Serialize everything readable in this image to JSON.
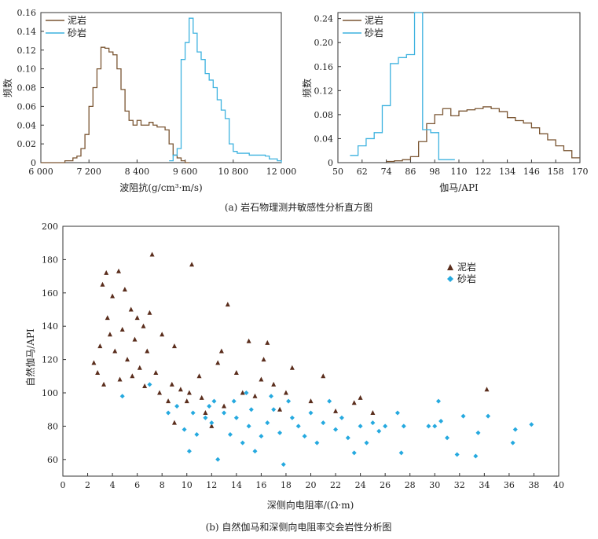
{
  "colors": {
    "shale": "#7a5532",
    "sandstone": "#3db2df",
    "shale_marker": "#5a2d1c",
    "sandstone_marker": "#25a9df"
  },
  "chart_data": [
    {
      "id": "a1",
      "type": "step-histogram",
      "xlabel": "波阻抗(g/cm³·m/s)",
      "ylabel": "频数",
      "xlim": [
        6000,
        12000
      ],
      "ylim": [
        0,
        0.16
      ],
      "xticks": [
        6000,
        7200,
        8400,
        9600,
        10800,
        12000
      ],
      "xtick_labels": [
        "6 000",
        "7 200",
        "8 400",
        "9 600",
        "10 800",
        "12 000"
      ],
      "yticks": [
        0,
        0.02,
        0.04,
        0.06,
        0.08,
        0.1,
        0.12,
        0.14,
        0.16
      ],
      "ytick_labels": [
        "0",
        "0.02",
        "0.04",
        "0.06",
        "0.08",
        "0.10",
        "0.12",
        "0.14",
        "0.16"
      ],
      "legend": [
        "泥岩",
        "砂岩"
      ],
      "series": [
        {
          "name": "泥岩",
          "x": [
            6000,
            6200,
            6400,
            6600,
            6800,
            6900,
            7000,
            7100,
            7200,
            7300,
            7400,
            7500,
            7600,
            7700,
            7800,
            7900,
            8000,
            8100,
            8200,
            8300,
            8400,
            8500,
            8600,
            8700,
            8800,
            8900,
            9000,
            9100,
            9200,
            9300,
            9400,
            9500,
            9600
          ],
          "y": [
            0,
            0,
            0,
            0.002,
            0.005,
            0.007,
            0.015,
            0.03,
            0.06,
            0.08,
            0.1,
            0.123,
            0.122,
            0.118,
            0.115,
            0.1,
            0.078,
            0.055,
            0.045,
            0.04,
            0.045,
            0.04,
            0.04,
            0.043,
            0.04,
            0.038,
            0.038,
            0.035,
            0.02,
            0.008,
            0.005,
            0.002,
            0
          ]
        },
        {
          "name": "砂岩",
          "x": [
            9200,
            9300,
            9400,
            9500,
            9600,
            9700,
            9800,
            9900,
            10000,
            10100,
            10200,
            10300,
            10400,
            10500,
            10600,
            10700,
            10800,
            10900,
            11000,
            11100,
            11200,
            11300,
            11400,
            11500,
            11600,
            11700,
            11800,
            11900,
            12000
          ],
          "y": [
            0.002,
            0.008,
            0.015,
            0.11,
            0.128,
            0.154,
            0.138,
            0.118,
            0.11,
            0.095,
            0.088,
            0.08,
            0.067,
            0.056,
            0.047,
            0.02,
            0.012,
            0.01,
            0.01,
            0.01,
            0.008,
            0.008,
            0.008,
            0.008,
            0.007,
            0.004,
            0.004,
            0.002,
            0
          ]
        }
      ]
    },
    {
      "id": "a2",
      "type": "step-histogram",
      "xlabel": "伽马/API",
      "ylabel": "频数",
      "xlim": [
        50,
        170
      ],
      "ylim": [
        0,
        0.25
      ],
      "xticks": [
        50,
        62,
        74,
        86,
        98,
        110,
        122,
        134,
        146,
        158,
        170
      ],
      "xtick_labels": [
        "50",
        "62",
        "74",
        "86",
        "98",
        "110",
        "122",
        "134",
        "146",
        "158",
        "170"
      ],
      "yticks": [
        0,
        0.04,
        0.08,
        0.12,
        0.16,
        0.2,
        0.24
      ],
      "ytick_labels": [
        "0",
        "0.04",
        "0.08",
        "0.12",
        "0.16",
        "0.20",
        "0.24"
      ],
      "legend": [
        "泥岩",
        "砂岩"
      ],
      "series": [
        {
          "name": "泥岩",
          "x": [
            74,
            78,
            82,
            86,
            90,
            94,
            98,
            102,
            106,
            110,
            114,
            118,
            122,
            126,
            130,
            134,
            138,
            142,
            146,
            150,
            154,
            158,
            162,
            166
          ],
          "y": [
            0.002,
            0.003,
            0.005,
            0.01,
            0.035,
            0.065,
            0.08,
            0.09,
            0.078,
            0.086,
            0.088,
            0.09,
            0.093,
            0.09,
            0.085,
            0.075,
            0.07,
            0.066,
            0.058,
            0.048,
            0.038,
            0.028,
            0.02,
            0.008
          ]
        },
        {
          "name": "砂岩",
          "x": [
            56,
            60,
            64,
            68,
            72,
            76,
            80,
            84,
            88,
            92,
            96,
            100,
            104
          ],
          "y": [
            0.012,
            0.028,
            0.04,
            0.05,
            0.095,
            0.165,
            0.175,
            0.18,
            0.25,
            0.055,
            0.05,
            0.005,
            0.005
          ]
        }
      ]
    },
    {
      "id": "b",
      "type": "scatter",
      "xlabel": "深侧向电阻率/(Ω·m)",
      "ylabel": "自然伽马/API",
      "xlim": [
        0,
        40
      ],
      "ylim": [
        50,
        200
      ],
      "xticks": [
        0,
        2,
        4,
        6,
        8,
        10,
        12,
        14,
        16,
        18,
        20,
        22,
        24,
        26,
        28,
        30,
        32,
        34,
        36,
        38,
        40
      ],
      "yticks": [
        60,
        80,
        100,
        120,
        140,
        160,
        180,
        200
      ],
      "legend": [
        "泥岩",
        "砂岩"
      ],
      "series": [
        {
          "name": "泥岩",
          "marker": "triangle",
          "points": [
            [
              3.2,
              165
            ],
            [
              3.5,
              172
            ],
            [
              4.0,
              158
            ],
            [
              4.5,
              173
            ],
            [
              5.0,
              162
            ],
            [
              5.5,
              150
            ],
            [
              6.0,
              145
            ],
            [
              6.5,
              140
            ],
            [
              7.0,
              148
            ],
            [
              7.2,
              183
            ],
            [
              8.0,
              135
            ],
            [
              9.0,
              128
            ],
            [
              10.4,
              177
            ],
            [
              13.3,
              153
            ],
            [
              15.0,
              131
            ],
            [
              16.5,
              130
            ],
            [
              11.0,
              110
            ],
            [
              12.5,
              118
            ],
            [
              14.0,
              112
            ],
            [
              16.0,
              108
            ],
            [
              17.0,
              105
            ],
            [
              18.0,
              100
            ],
            [
              20.0,
              95
            ],
            [
              21.0,
              110
            ],
            [
              22.0,
              89
            ],
            [
              23.5,
              94
            ],
            [
              24.0,
              97
            ],
            [
              25.0,
              88
            ],
            [
              34.2,
              102
            ],
            [
              10.0,
              95
            ],
            [
              11.5,
              88
            ],
            [
              13.0,
              92
            ],
            [
              14.5,
              100
            ],
            [
              15.5,
              98
            ],
            [
              17.5,
              90
            ],
            [
              12.0,
              80
            ],
            [
              9.0,
              82
            ],
            [
              8.5,
              95
            ],
            [
              2.5,
              118
            ],
            [
              3.0,
              128
            ],
            [
              3.8,
              135
            ],
            [
              4.2,
              125
            ],
            [
              5.2,
              120
            ],
            [
              6.2,
              115
            ],
            [
              7.5,
              112
            ],
            [
              8.8,
              105
            ],
            [
              9.5,
              102
            ],
            [
              10.2,
              100
            ],
            [
              11.2,
              97
            ],
            [
              6.8,
              125
            ],
            [
              5.8,
              132
            ],
            [
              4.8,
              138
            ],
            [
              3.6,
              145
            ],
            [
              2.8,
              112
            ],
            [
              3.3,
              105
            ],
            [
              4.6,
              108
            ],
            [
              5.6,
              110
            ],
            [
              6.6,
              104
            ],
            [
              7.8,
              100
            ],
            [
              12.8,
              125
            ],
            [
              16.2,
              120
            ],
            [
              18.5,
              115
            ]
          ]
        },
        {
          "name": "砂岩",
          "marker": "diamond",
          "points": [
            [
              4.8,
              98
            ],
            [
              7.0,
              105
            ],
            [
              8.5,
              88
            ],
            [
              9.8,
              78
            ],
            [
              10.2,
              65
            ],
            [
              10.8,
              75
            ],
            [
              11.5,
              85
            ],
            [
              12.0,
              82
            ],
            [
              12.5,
              60
            ],
            [
              13.0,
              88
            ],
            [
              13.5,
              75
            ],
            [
              14.0,
              85
            ],
            [
              14.5,
              70
            ],
            [
              15.0,
              80
            ],
            [
              15.5,
              65
            ],
            [
              16.0,
              74
            ],
            [
              16.5,
              82
            ],
            [
              17.0,
              90
            ],
            [
              17.5,
              76
            ],
            [
              17.8,
              57
            ],
            [
              18.5,
              85
            ],
            [
              19.0,
              80
            ],
            [
              19.5,
              74
            ],
            [
              20.0,
              88
            ],
            [
              20.5,
              70
            ],
            [
              21.0,
              82
            ],
            [
              21.5,
              95
            ],
            [
              22.0,
              78
            ],
            [
              22.5,
              85
            ],
            [
              23.0,
              73
            ],
            [
              23.5,
              64
            ],
            [
              24.0,
              80
            ],
            [
              24.5,
              70
            ],
            [
              25.0,
              82
            ],
            [
              25.5,
              77
            ],
            [
              26.0,
              80
            ],
            [
              27.0,
              88
            ],
            [
              27.3,
              64
            ],
            [
              27.5,
              80
            ],
            [
              29.5,
              80
            ],
            [
              30.0,
              80
            ],
            [
              30.3,
              95
            ],
            [
              30.5,
              83
            ],
            [
              31.0,
              73
            ],
            [
              31.8,
              63
            ],
            [
              32.3,
              86
            ],
            [
              33.3,
              62
            ],
            [
              33.5,
              76
            ],
            [
              34.3,
              86
            ],
            [
              36.3,
              70
            ],
            [
              36.5,
              78
            ],
            [
              37.8,
              81
            ],
            [
              12.2,
              95
            ],
            [
              14.8,
              100
            ],
            [
              16.8,
              98
            ],
            [
              18.2,
              95
            ],
            [
              15.2,
              90
            ],
            [
              13.8,
              95
            ],
            [
              11.8,
              92
            ],
            [
              10.5,
              88
            ],
            [
              9.2,
              92
            ]
          ]
        }
      ]
    }
  ],
  "captions": {
    "a": "(a) 岩石物理测井敏感性分析直方图",
    "b": "(b) 自然伽马和深侧向电阻率交会岩性分析图"
  }
}
